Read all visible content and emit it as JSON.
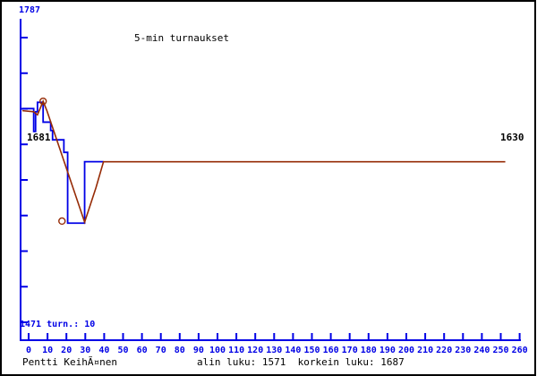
{
  "colors": {
    "axis_blue": "#0000E6",
    "series_blue": "#0000E6",
    "series_red": "#962B06",
    "text_black": "#000000",
    "background": "#FFFFFF",
    "frame_border": "#000000"
  },
  "chart_data": {
    "type": "line",
    "title": "5-min turnaukset",
    "x_axis": {
      "ticks": [
        0,
        10,
        20,
        30,
        40,
        50,
        60,
        70,
        80,
        90,
        100,
        110,
        120,
        130,
        140,
        150,
        160,
        170,
        180,
        190,
        200,
        210,
        220,
        230,
        240,
        250,
        260
      ],
      "range": [
        0,
        260
      ]
    },
    "y_axis": {
      "top_label": "1787",
      "bottom_left_label": "1471 turn.: 10",
      "range": [
        1471,
        1787
      ],
      "unlabeled_tick_count": 9
    },
    "annotations": {
      "start_value_label": "1681",
      "end_value_label": "1630"
    },
    "series": [
      {
        "name": "rating-steps",
        "style": "step",
        "color": "#0000E6",
        "points": [
          [
            0,
            1681
          ],
          [
            6,
            1659
          ],
          [
            7,
            1678
          ],
          [
            8,
            1687
          ],
          [
            11,
            1668
          ],
          [
            15,
            1660
          ],
          [
            16,
            1651
          ],
          [
            22,
            1639
          ],
          [
            24,
            1571
          ],
          [
            33,
            1630
          ]
        ],
        "end_t": 43
      },
      {
        "name": "rating-smoothed",
        "style": "line",
        "color": "#962B06",
        "points": [
          [
            0,
            1679
          ],
          [
            6,
            1678
          ],
          [
            8,
            1675
          ],
          [
            11,
            1688
          ],
          [
            13,
            1679
          ],
          [
            33,
            1572
          ],
          [
            39,
            1605
          ],
          [
            43,
            1630
          ],
          [
            256,
            1630
          ]
        ]
      }
    ],
    "markers": [
      {
        "t": 11,
        "v": 1688,
        "meaning": "korkein"
      },
      {
        "t": 21,
        "v": 1573,
        "meaning": "alin"
      }
    ],
    "legend": "none",
    "grid": "off"
  },
  "footer": {
    "player": "Pentti KeihÃ¤nen",
    "stats": "alin luku: 1571  korkein luku: 1687"
  }
}
